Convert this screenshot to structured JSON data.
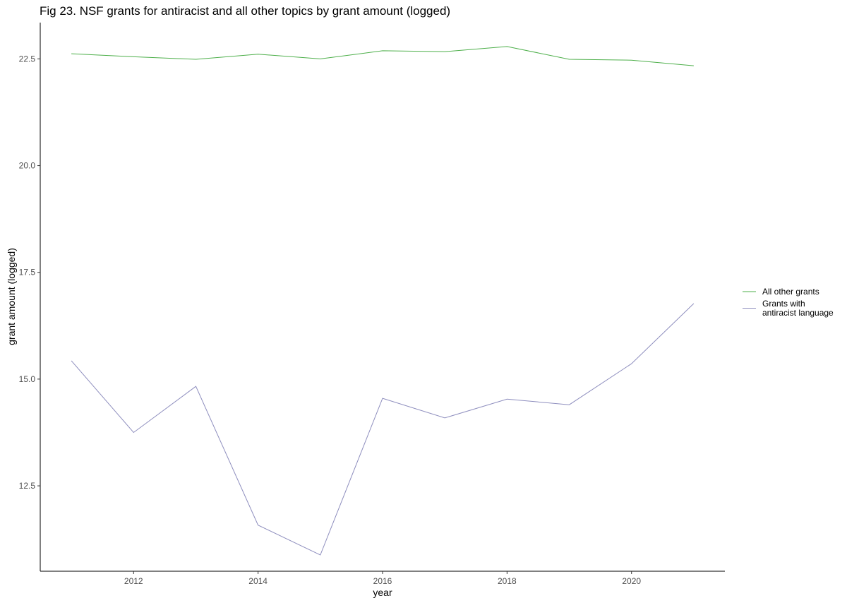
{
  "chart_data": {
    "type": "line",
    "title": "Fig 23. NSF grants for antiracist and all other topics by grant amount (logged)",
    "xlabel": "year",
    "ylabel": "grant amount (logged)",
    "x": [
      2011,
      2012,
      2013,
      2014,
      2015,
      2016,
      2017,
      2018,
      2019,
      2020,
      2021
    ],
    "xlim": [
      2010.5,
      2021.5
    ],
    "ylim": [
      10.5,
      23.35
    ],
    "xticks": [
      2012,
      2014,
      2016,
      2018,
      2020
    ],
    "yticks": [
      12.5,
      15.0,
      17.5,
      20.0,
      22.5
    ],
    "ytick_labels": [
      "12.5",
      "15.0",
      "17.5",
      "20.0",
      "22.5"
    ],
    "grid": false,
    "legend_position": "right",
    "series": [
      {
        "name": "All other grants",
        "color": "#4daf4a",
        "values": [
          22.62,
          22.55,
          22.49,
          22.61,
          22.5,
          22.69,
          22.67,
          22.79,
          22.49,
          22.47,
          22.34
        ]
      },
      {
        "name": "Grants with antiracist language",
        "name_lines": [
          "Grants with",
          "antiracist language"
        ],
        "color": "#8e8ebe",
        "values": [
          15.43,
          13.75,
          14.83,
          11.58,
          10.88,
          14.55,
          14.09,
          14.53,
          14.4,
          15.36,
          16.77
        ]
      }
    ]
  }
}
